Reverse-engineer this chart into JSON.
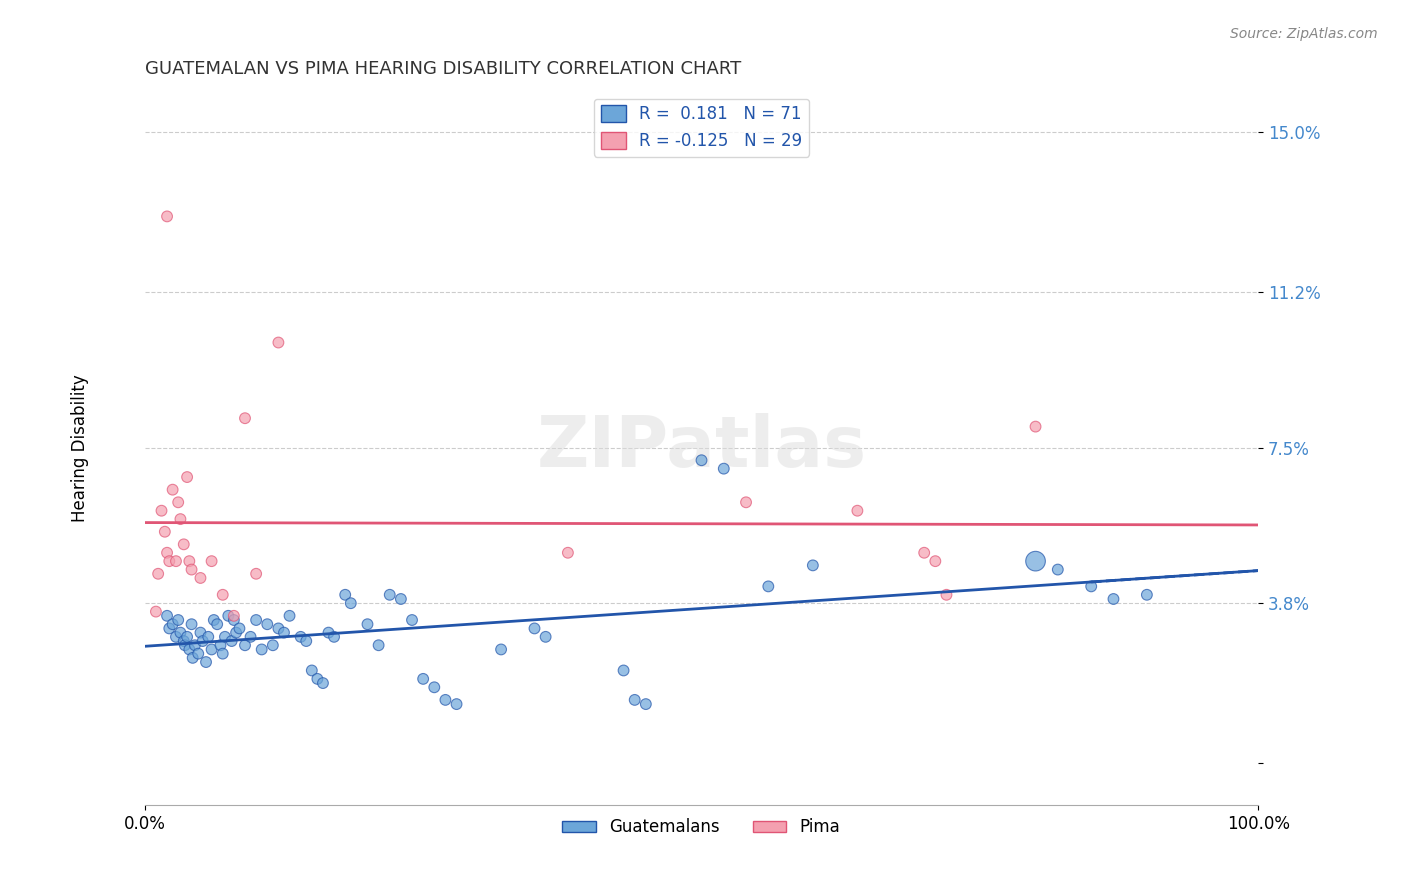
{
  "title": "GUATEMALAN VS PIMA HEARING DISABILITY CORRELATION CHART",
  "source": "Source: ZipAtlas.com",
  "xlabel": "",
  "ylabel": "Hearing Disability",
  "xlim": [
    0.0,
    1.0
  ],
  "ylim": [
    -0.01,
    0.16
  ],
  "yticks": [
    0.0,
    0.038,
    0.075,
    0.112,
    0.15
  ],
  "ytick_labels": [
    "",
    "3.8%",
    "7.5%",
    "11.2%",
    "15.0%"
  ],
  "xtick_labels": [
    "0.0%",
    "100.0%"
  ],
  "background_color": "#ffffff",
  "watermark": "ZIPatlas",
  "legend_r1": "R =  0.181   N = 71",
  "legend_r2": "R = -0.125   N = 29",
  "blue_color": "#6ca6d9",
  "pink_color": "#f4a0b0",
  "blue_line_color": "#2255aa",
  "pink_line_color": "#e05575",
  "blue_scatter": [
    [
      0.02,
      0.035
    ],
    [
      0.022,
      0.032
    ],
    [
      0.025,
      0.033
    ],
    [
      0.028,
      0.03
    ],
    [
      0.03,
      0.034
    ],
    [
      0.032,
      0.031
    ],
    [
      0.035,
      0.029
    ],
    [
      0.036,
      0.028
    ],
    [
      0.038,
      0.03
    ],
    [
      0.04,
      0.027
    ],
    [
      0.042,
      0.033
    ],
    [
      0.043,
      0.025
    ],
    [
      0.045,
      0.028
    ],
    [
      0.048,
      0.026
    ],
    [
      0.05,
      0.031
    ],
    [
      0.052,
      0.029
    ],
    [
      0.055,
      0.024
    ],
    [
      0.057,
      0.03
    ],
    [
      0.06,
      0.027
    ],
    [
      0.062,
      0.034
    ],
    [
      0.065,
      0.033
    ],
    [
      0.068,
      0.028
    ],
    [
      0.07,
      0.026
    ],
    [
      0.072,
      0.03
    ],
    [
      0.075,
      0.035
    ],
    [
      0.078,
      0.029
    ],
    [
      0.08,
      0.034
    ],
    [
      0.082,
      0.031
    ],
    [
      0.085,
      0.032
    ],
    [
      0.09,
      0.028
    ],
    [
      0.095,
      0.03
    ],
    [
      0.1,
      0.034
    ],
    [
      0.105,
      0.027
    ],
    [
      0.11,
      0.033
    ],
    [
      0.115,
      0.028
    ],
    [
      0.12,
      0.032
    ],
    [
      0.125,
      0.031
    ],
    [
      0.13,
      0.035
    ],
    [
      0.14,
      0.03
    ],
    [
      0.145,
      0.029
    ],
    [
      0.15,
      0.022
    ],
    [
      0.155,
      0.02
    ],
    [
      0.16,
      0.019
    ],
    [
      0.165,
      0.031
    ],
    [
      0.17,
      0.03
    ],
    [
      0.18,
      0.04
    ],
    [
      0.185,
      0.038
    ],
    [
      0.2,
      0.033
    ],
    [
      0.21,
      0.028
    ],
    [
      0.22,
      0.04
    ],
    [
      0.23,
      0.039
    ],
    [
      0.24,
      0.034
    ],
    [
      0.25,
      0.02
    ],
    [
      0.26,
      0.018
    ],
    [
      0.27,
      0.015
    ],
    [
      0.28,
      0.014
    ],
    [
      0.32,
      0.027
    ],
    [
      0.35,
      0.032
    ],
    [
      0.36,
      0.03
    ],
    [
      0.43,
      0.022
    ],
    [
      0.44,
      0.015
    ],
    [
      0.45,
      0.014
    ],
    [
      0.5,
      0.072
    ],
    [
      0.52,
      0.07
    ],
    [
      0.56,
      0.042
    ],
    [
      0.6,
      0.047
    ],
    [
      0.8,
      0.048
    ],
    [
      0.82,
      0.046
    ],
    [
      0.85,
      0.042
    ],
    [
      0.87,
      0.039
    ],
    [
      0.9,
      0.04
    ]
  ],
  "pink_scatter": [
    [
      0.01,
      0.036
    ],
    [
      0.012,
      0.045
    ],
    [
      0.015,
      0.06
    ],
    [
      0.018,
      0.055
    ],
    [
      0.02,
      0.05
    ],
    [
      0.022,
      0.048
    ],
    [
      0.025,
      0.065
    ],
    [
      0.028,
      0.048
    ],
    [
      0.03,
      0.062
    ],
    [
      0.032,
      0.058
    ],
    [
      0.035,
      0.052
    ],
    [
      0.038,
      0.068
    ],
    [
      0.04,
      0.048
    ],
    [
      0.042,
      0.046
    ],
    [
      0.05,
      0.044
    ],
    [
      0.06,
      0.048
    ],
    [
      0.07,
      0.04
    ],
    [
      0.08,
      0.035
    ],
    [
      0.09,
      0.082
    ],
    [
      0.1,
      0.045
    ],
    [
      0.02,
      0.13
    ],
    [
      0.12,
      0.1
    ],
    [
      0.38,
      0.05
    ],
    [
      0.54,
      0.062
    ],
    [
      0.64,
      0.06
    ],
    [
      0.7,
      0.05
    ],
    [
      0.71,
      0.048
    ],
    [
      0.72,
      0.04
    ],
    [
      0.8,
      0.08
    ]
  ],
  "blue_sizes": [
    60,
    60,
    60,
    60,
    60,
    60,
    60,
    60,
    60,
    60,
    60,
    60,
    60,
    60,
    60,
    60,
    60,
    60,
    60,
    60,
    60,
    60,
    60,
    60,
    60,
    60,
    60,
    60,
    60,
    60,
    60,
    60,
    60,
    60,
    60,
    60,
    60,
    60,
    60,
    60,
    60,
    60,
    60,
    60,
    60,
    60,
    60,
    60,
    60,
    60,
    60,
    60,
    60,
    60,
    60,
    60,
    60,
    60,
    60,
    60,
    60,
    60,
    60,
    60,
    60,
    60,
    200,
    60,
    60,
    60,
    60
  ],
  "pink_sizes": [
    60,
    60,
    60,
    60,
    60,
    60,
    60,
    60,
    60,
    60,
    60,
    60,
    60,
    60,
    60,
    60,
    60,
    60,
    60,
    60,
    60,
    60,
    60,
    60,
    60,
    60,
    60,
    60,
    60
  ]
}
